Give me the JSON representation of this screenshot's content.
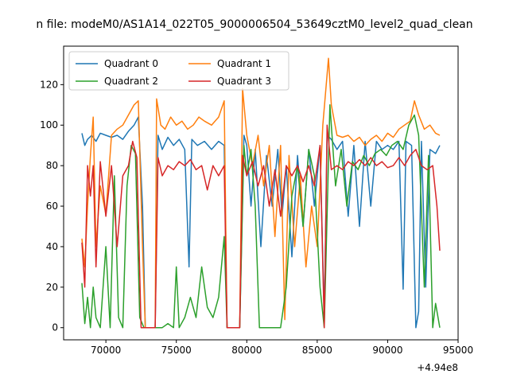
{
  "chart_data": {
    "type": "line",
    "title": "n file: modeM0/AS1A14_022T05_9000006504_53649cztM0_level2_quad_clean",
    "xlabel": "",
    "ylabel": "",
    "x_offset_label": "+4.94e8",
    "xlim": [
      67000,
      95000
    ],
    "ylim": [
      -6,
      139
    ],
    "x_ticks": [
      70000,
      75000,
      80000,
      85000,
      90000,
      95000
    ],
    "x_tick_labels": [
      "70000",
      "75000",
      "80000",
      "85000",
      "90000",
      "95000"
    ],
    "y_ticks": [
      0,
      20,
      40,
      60,
      80,
      100,
      120
    ],
    "y_tick_labels": [
      "0",
      "20",
      "40",
      "60",
      "80",
      "100",
      "120"
    ],
    "grid": false,
    "legend": {
      "position": "top-left",
      "columns": 2
    },
    "series": [
      {
        "name": "Quadrant 0",
        "color": "#1f77b4",
        "points": [
          [
            68300,
            96
          ],
          [
            68500,
            90
          ],
          [
            68700,
            93
          ],
          [
            69000,
            95
          ],
          [
            69300,
            92
          ],
          [
            69600,
            96
          ],
          [
            70000,
            95
          ],
          [
            70400,
            94
          ],
          [
            70800,
            95
          ],
          [
            71200,
            93
          ],
          [
            71600,
            97
          ],
          [
            72000,
            100
          ],
          [
            72300,
            104
          ],
          [
            72600,
            60
          ],
          [
            72800,
            0
          ],
          [
            73500,
            0
          ],
          [
            73700,
            95
          ],
          [
            74000,
            88
          ],
          [
            74400,
            94
          ],
          [
            74800,
            90
          ],
          [
            75200,
            93
          ],
          [
            75600,
            88
          ],
          [
            75900,
            30
          ],
          [
            76100,
            93
          ],
          [
            76500,
            90
          ],
          [
            77000,
            92
          ],
          [
            77500,
            88
          ],
          [
            78000,
            92
          ],
          [
            78400,
            90
          ],
          [
            78600,
            0
          ],
          [
            79500,
            0
          ],
          [
            79800,
            95
          ],
          [
            80000,
            90
          ],
          [
            80300,
            60
          ],
          [
            80600,
            88
          ],
          [
            81000,
            40
          ],
          [
            81400,
            85
          ],
          [
            81800,
            60
          ],
          [
            82200,
            88
          ],
          [
            82500,
            55
          ],
          [
            82800,
            80
          ],
          [
            83200,
            35
          ],
          [
            83600,
            85
          ],
          [
            84000,
            50
          ],
          [
            84400,
            88
          ],
          [
            84800,
            60
          ],
          [
            85200,
            90
          ],
          [
            85500,
            5
          ],
          [
            85700,
            95
          ],
          [
            86000,
            93
          ],
          [
            86400,
            88
          ],
          [
            86800,
            92
          ],
          [
            87200,
            55
          ],
          [
            87600,
            90
          ],
          [
            88000,
            50
          ],
          [
            88400,
            92
          ],
          [
            88800,
            60
          ],
          [
            89200,
            92
          ],
          [
            89600,
            88
          ],
          [
            90000,
            90
          ],
          [
            90400,
            88
          ],
          [
            90800,
            92
          ],
          [
            91100,
            19
          ],
          [
            91300,
            92
          ],
          [
            91700,
            90
          ],
          [
            92000,
            0
          ],
          [
            92200,
            8
          ],
          [
            92400,
            92
          ],
          [
            92700,
            20
          ],
          [
            93000,
            88
          ],
          [
            93400,
            86
          ],
          [
            93700,
            90
          ]
        ]
      },
      {
        "name": "Quadrant 1",
        "color": "#ff7f0e",
        "points": [
          [
            68300,
            44
          ],
          [
            68500,
            30
          ],
          [
            68700,
            60
          ],
          [
            68900,
            85
          ],
          [
            69100,
            104
          ],
          [
            69300,
            40
          ],
          [
            69600,
            70
          ],
          [
            70000,
            56
          ],
          [
            70400,
            95
          ],
          [
            70800,
            98
          ],
          [
            71200,
            100
          ],
          [
            71600,
            105
          ],
          [
            72000,
            110
          ],
          [
            72300,
            112
          ],
          [
            72600,
            40
          ],
          [
            72800,
            0
          ],
          [
            73500,
            0
          ],
          [
            73600,
            113
          ],
          [
            73900,
            100
          ],
          [
            74200,
            98
          ],
          [
            74600,
            104
          ],
          [
            75000,
            100
          ],
          [
            75400,
            102
          ],
          [
            75800,
            98
          ],
          [
            76200,
            100
          ],
          [
            76600,
            104
          ],
          [
            77000,
            102
          ],
          [
            77500,
            100
          ],
          [
            78000,
            104
          ],
          [
            78400,
            112
          ],
          [
            78600,
            0
          ],
          [
            79500,
            0
          ],
          [
            79700,
            118
          ],
          [
            80000,
            95
          ],
          [
            80400,
            80
          ],
          [
            80800,
            95
          ],
          [
            81200,
            70
          ],
          [
            81600,
            90
          ],
          [
            82000,
            45
          ],
          [
            82400,
            90
          ],
          [
            82700,
            4
          ],
          [
            83000,
            85
          ],
          [
            83400,
            40
          ],
          [
            83800,
            75
          ],
          [
            84200,
            30
          ],
          [
            84600,
            60
          ],
          [
            85000,
            40
          ],
          [
            85400,
            100
          ],
          [
            85800,
            133
          ],
          [
            86000,
            110
          ],
          [
            86400,
            95
          ],
          [
            86800,
            94
          ],
          [
            87200,
            95
          ],
          [
            87600,
            92
          ],
          [
            88000,
            94
          ],
          [
            88400,
            90
          ],
          [
            88800,
            93
          ],
          [
            89200,
            95
          ],
          [
            89600,
            92
          ],
          [
            90000,
            96
          ],
          [
            90400,
            94
          ],
          [
            90800,
            98
          ],
          [
            91200,
            100
          ],
          [
            91600,
            102
          ],
          [
            91900,
            112
          ],
          [
            92200,
            105
          ],
          [
            92600,
            98
          ],
          [
            93000,
            100
          ],
          [
            93400,
            96
          ],
          [
            93700,
            95
          ]
        ]
      },
      {
        "name": "Quadrant 2",
        "color": "#2ca02c",
        "points": [
          [
            68300,
            22
          ],
          [
            68500,
            2
          ],
          [
            68700,
            15
          ],
          [
            68900,
            0
          ],
          [
            69100,
            20
          ],
          [
            69300,
            5
          ],
          [
            69600,
            0
          ],
          [
            70000,
            40
          ],
          [
            70300,
            0
          ],
          [
            70600,
            75
          ],
          [
            70900,
            5
          ],
          [
            71200,
            0
          ],
          [
            71500,
            70
          ],
          [
            71800,
            90
          ],
          [
            72100,
            86
          ],
          [
            72400,
            5
          ],
          [
            72700,
            0
          ],
          [
            73600,
            0
          ],
          [
            74000,
            0
          ],
          [
            74400,
            2
          ],
          [
            74800,
            0
          ],
          [
            75000,
            30
          ],
          [
            75200,
            0
          ],
          [
            75600,
            5
          ],
          [
            76000,
            15
          ],
          [
            76400,
            5
          ],
          [
            76800,
            30
          ],
          [
            77200,
            10
          ],
          [
            77600,
            5
          ],
          [
            78000,
            15
          ],
          [
            78400,
            45
          ],
          [
            78600,
            0
          ],
          [
            79500,
            0
          ],
          [
            79800,
            90
          ],
          [
            80000,
            75
          ],
          [
            80300,
            88
          ],
          [
            80600,
            60
          ],
          [
            80900,
            0
          ],
          [
            81200,
            0
          ],
          [
            81600,
            0
          ],
          [
            82000,
            0
          ],
          [
            82400,
            0
          ],
          [
            82800,
            20
          ],
          [
            83200,
            65
          ],
          [
            83600,
            80
          ],
          [
            84000,
            50
          ],
          [
            84400,
            88
          ],
          [
            84800,
            75
          ],
          [
            85200,
            20
          ],
          [
            85500,
            0
          ],
          [
            85900,
            110
          ],
          [
            86300,
            70
          ],
          [
            86700,
            88
          ],
          [
            87100,
            60
          ],
          [
            87500,
            82
          ],
          [
            87900,
            78
          ],
          [
            88300,
            85
          ],
          [
            88700,
            80
          ],
          [
            89100,
            86
          ],
          [
            89500,
            88
          ],
          [
            89900,
            85
          ],
          [
            90300,
            90
          ],
          [
            90700,
            92
          ],
          [
            91100,
            88
          ],
          [
            91500,
            100
          ],
          [
            91900,
            105
          ],
          [
            92200,
            95
          ],
          [
            92600,
            20
          ],
          [
            92900,
            85
          ],
          [
            93200,
            0
          ],
          [
            93400,
            12
          ],
          [
            93700,
            0
          ]
        ]
      },
      {
        "name": "Quadrant 3",
        "color": "#d62728",
        "points": [
          [
            68300,
            42
          ],
          [
            68500,
            20
          ],
          [
            68700,
            80
          ],
          [
            68900,
            65
          ],
          [
            69100,
            80
          ],
          [
            69300,
            30
          ],
          [
            69600,
            82
          ],
          [
            70000,
            55
          ],
          [
            70400,
            80
          ],
          [
            70800,
            40
          ],
          [
            71200,
            75
          ],
          [
            71600,
            80
          ],
          [
            71900,
            92
          ],
          [
            72200,
            84
          ],
          [
            72500,
            0
          ],
          [
            73500,
            0
          ],
          [
            73700,
            84
          ],
          [
            74000,
            75
          ],
          [
            74400,
            80
          ],
          [
            74800,
            78
          ],
          [
            75200,
            82
          ],
          [
            75600,
            80
          ],
          [
            76000,
            83
          ],
          [
            76400,
            78
          ],
          [
            76800,
            80
          ],
          [
            77200,
            68
          ],
          [
            77600,
            80
          ],
          [
            78000,
            75
          ],
          [
            78400,
            80
          ],
          [
            78600,
            0
          ],
          [
            79500,
            0
          ],
          [
            79700,
            85
          ],
          [
            80000,
            75
          ],
          [
            80400,
            82
          ],
          [
            80800,
            70
          ],
          [
            81200,
            80
          ],
          [
            81600,
            60
          ],
          [
            82000,
            78
          ],
          [
            82400,
            55
          ],
          [
            82800,
            80
          ],
          [
            83200,
            75
          ],
          [
            83600,
            80
          ],
          [
            84000,
            72
          ],
          [
            84400,
            80
          ],
          [
            84800,
            70
          ],
          [
            85200,
            90
          ],
          [
            85500,
            0
          ],
          [
            85700,
            100
          ],
          [
            86000,
            78
          ],
          [
            86400,
            80
          ],
          [
            86800,
            78
          ],
          [
            87200,
            82
          ],
          [
            87600,
            80
          ],
          [
            88000,
            83
          ],
          [
            88400,
            80
          ],
          [
            88800,
            84
          ],
          [
            89200,
            80
          ],
          [
            89600,
            82
          ],
          [
            90000,
            79
          ],
          [
            90400,
            80
          ],
          [
            90800,
            84
          ],
          [
            91200,
            80
          ],
          [
            91600,
            85
          ],
          [
            92000,
            88
          ],
          [
            92400,
            80
          ],
          [
            92800,
            78
          ],
          [
            93200,
            80
          ],
          [
            93500,
            60
          ],
          [
            93700,
            38
          ]
        ]
      }
    ]
  }
}
